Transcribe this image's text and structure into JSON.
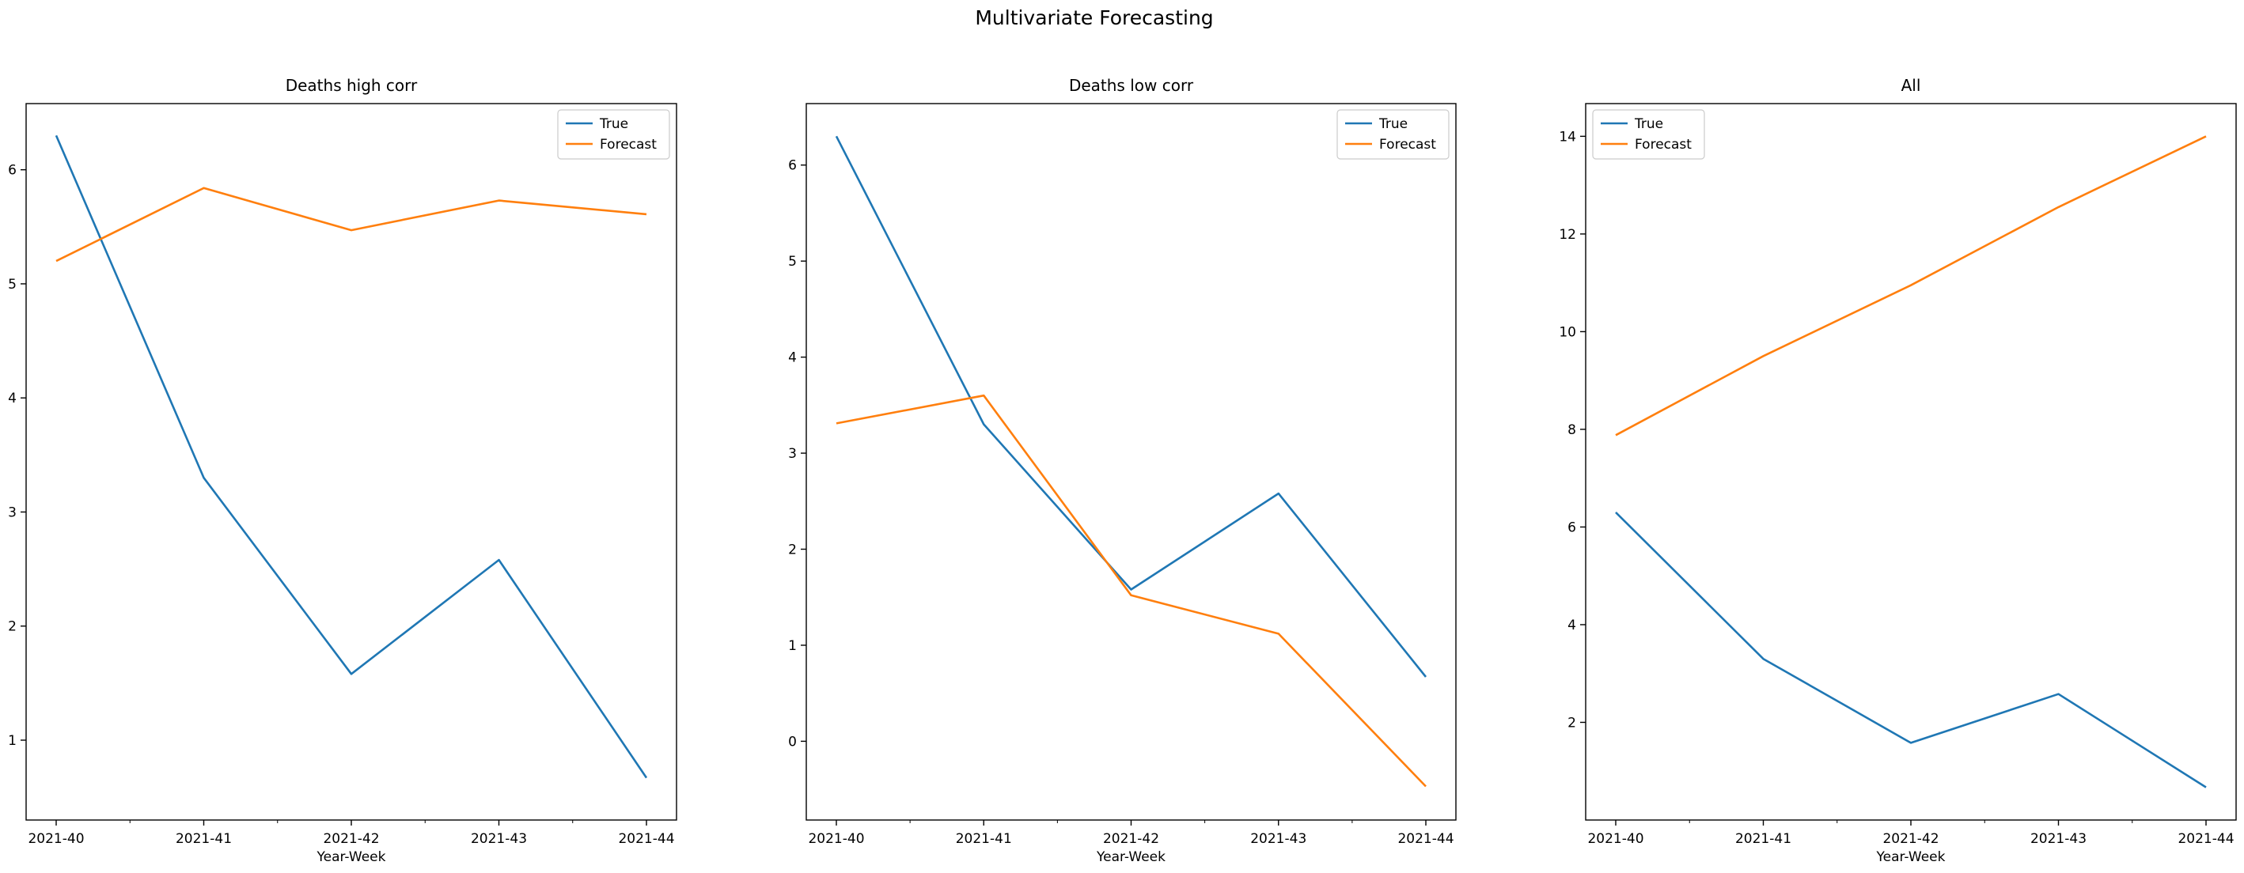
{
  "figure": {
    "title": "Multivariate Forecasting"
  },
  "colors": {
    "true": "#1f77b4",
    "forecast": "#ff7f0e",
    "axes": "#000000",
    "legend_border": "#cccccc"
  },
  "chart_data": [
    {
      "type": "line",
      "title": "Deaths high corr",
      "xlabel": "Year-Week",
      "ylabel": "",
      "x": [
        "2021-40",
        "2021-41",
        "2021-42",
        "2021-43",
        "2021-44"
      ],
      "series": [
        {
          "name": "True",
          "values": [
            6.3,
            3.3,
            1.58,
            2.58,
            0.67
          ]
        },
        {
          "name": "Forecast",
          "values": [
            5.2,
            5.84,
            5.47,
            5.73,
            5.61
          ]
        }
      ],
      "ylim": [
        0.3,
        6.58
      ],
      "yticks": [
        1,
        2,
        3,
        4,
        5,
        6
      ],
      "legend": "top-right",
      "grid": false
    },
    {
      "type": "line",
      "title": "Deaths low corr",
      "xlabel": "Year-Week",
      "ylabel": "",
      "x": [
        "2021-40",
        "2021-41",
        "2021-42",
        "2021-43",
        "2021-44"
      ],
      "series": [
        {
          "name": "True",
          "values": [
            6.3,
            3.3,
            1.58,
            2.58,
            0.67
          ]
        },
        {
          "name": "Forecast",
          "values": [
            3.31,
            3.6,
            1.52,
            1.12,
            -0.47
          ]
        }
      ],
      "ylim": [
        -0.82,
        6.64
      ],
      "yticks": [
        0,
        1,
        2,
        3,
        4,
        5,
        6
      ],
      "legend": "top-right",
      "grid": false
    },
    {
      "type": "line",
      "title": "All",
      "xlabel": "Year-Week",
      "ylabel": "",
      "x": [
        "2021-40",
        "2021-41",
        "2021-42",
        "2021-43",
        "2021-44"
      ],
      "series": [
        {
          "name": "True",
          "values": [
            6.3,
            3.3,
            1.58,
            2.58,
            0.67
          ]
        },
        {
          "name": "Forecast",
          "values": [
            7.88,
            9.5,
            10.95,
            12.55,
            14.0
          ]
        }
      ],
      "ylim": [
        0.0,
        14.67
      ],
      "yticks": [
        2,
        4,
        6,
        8,
        10,
        12,
        14
      ],
      "legend": "top-left",
      "grid": false
    }
  ]
}
